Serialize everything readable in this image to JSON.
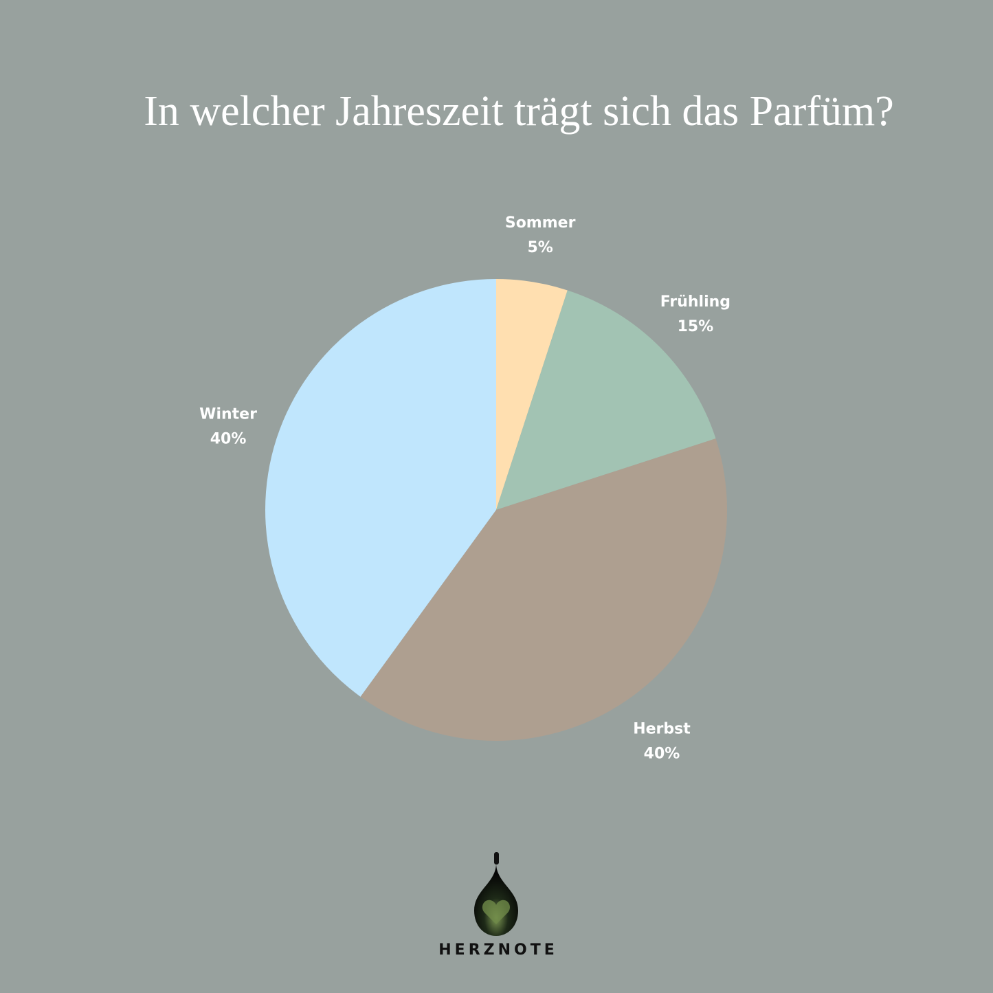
{
  "chart_data": {
    "type": "pie",
    "title": "In welcher Jahreszeit trägt sich das Parfüm?",
    "categories": [
      "Sommer",
      "Frühling",
      "Herbst",
      "Winter"
    ],
    "values": [
      5,
      15,
      40,
      40
    ],
    "value_labels": [
      "5%",
      "15%",
      "40%",
      "40%"
    ],
    "colors": [
      "#FFDFB0",
      "#A2C3B3",
      "#AE9F90",
      "#C0E6FD"
    ]
  },
  "logo": {
    "text": "HERZNOTE"
  }
}
